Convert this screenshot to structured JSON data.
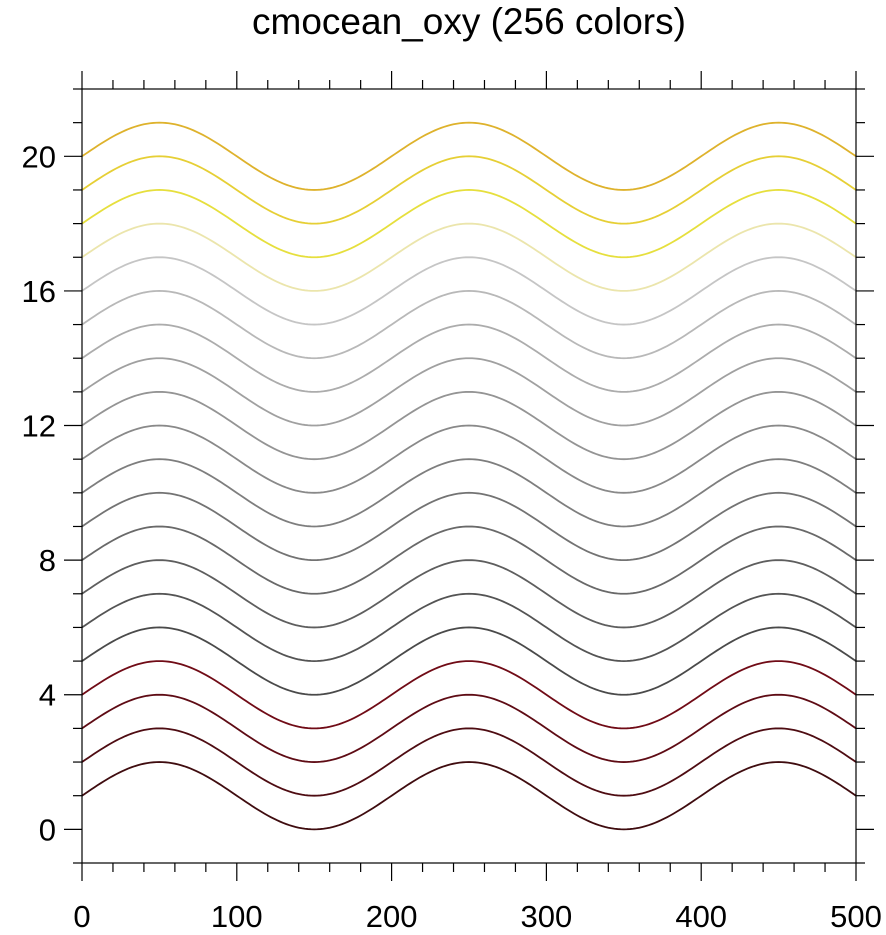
{
  "chart_data": {
    "type": "line",
    "title": "cmocean_oxy (256 colors)",
    "xlabel": "",
    "ylabel": "",
    "xlim": [
      0,
      500
    ],
    "ylim": [
      -1,
      22
    ],
    "x_ticks": [
      0,
      100,
      200,
      300,
      400,
      500
    ],
    "x_tick_labels": [
      "0",
      "100",
      "200",
      "300",
      "400",
      "500"
    ],
    "y_ticks": [
      0,
      4,
      8,
      12,
      16,
      20
    ],
    "y_tick_labels": [
      "0",
      "4",
      "8",
      "12",
      "16",
      "20"
    ],
    "x_minor_step": 20,
    "y_minor_step": 1,
    "grid": false,
    "legend": "none",
    "curve": "y = offset + 1 + sin(2*pi*x/200)",
    "offsets": [
      0,
      1,
      2,
      3,
      4,
      5,
      6,
      7,
      8,
      9,
      10,
      11,
      12,
      13,
      14,
      15,
      16,
      17,
      18,
      19
    ],
    "series_colors": [
      "#3f0c0f",
      "#4e0c12",
      "#5e0b14",
      "#700b16",
      "#4a4a4a",
      "#545454",
      "#5e5e5e",
      "#696969",
      "#737373",
      "#7e7e7e",
      "#898989",
      "#949494",
      "#a0a0a0",
      "#acacac",
      "#b8b8b8",
      "#c5c5c5",
      "#ebe5ac",
      "#e6df3d",
      "#e6cf35",
      "#deb22c"
    ]
  }
}
